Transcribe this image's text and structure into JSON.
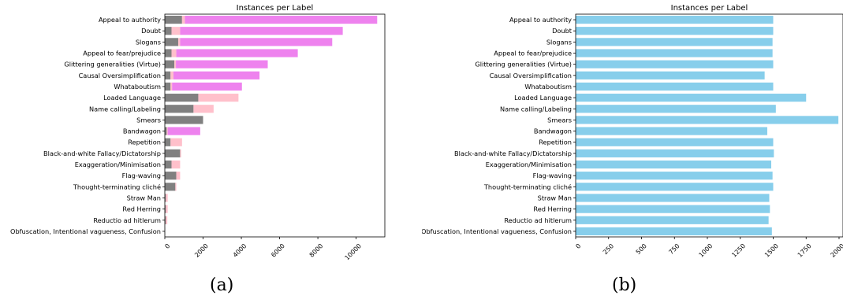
{
  "figure": {
    "caption_a": "(a)",
    "caption_b": "(b)"
  },
  "chart_data": [
    {
      "type": "bar",
      "orientation": "horizontal",
      "stacked": true,
      "title": "Instances per Label",
      "xlabel": "",
      "ylabel": "",
      "xlim": [
        0,
        11500
      ],
      "xticks": [
        0,
        2000,
        4000,
        6000,
        8000,
        10000
      ],
      "grid": false,
      "legend": "none",
      "categories": [
        "Appeal to authority",
        "Doubt",
        "Slogans",
        "Appeal to fear/prejudice",
        "Glittering generalities (Virtue)",
        "Causal Oversimplification",
        "Whataboutism",
        "Loaded Language",
        "Name calling/Labeling",
        "Smears",
        "Bandwagon",
        "Repetition",
        "Black-and-white Fallacy/Dictatorship",
        "Exaggeration/Minimisation",
        "Flag-waving",
        "Thought-terminating cliché",
        "Straw Man",
        "Red Herring",
        "Reductio ad hitlerum",
        "Obfuscation, Intentional vagueness, Confusion"
      ],
      "series": [
        {
          "color": "#808080",
          "values": [
            900,
            350,
            700,
            350,
            500,
            300,
            300,
            1750,
            1500,
            2000,
            100,
            300,
            800,
            350,
            600,
            550,
            50,
            50,
            50,
            10
          ]
        },
        {
          "color": "#ffc0cb",
          "values": [
            150,
            450,
            100,
            250,
            80,
            150,
            80,
            2100,
            1050,
            0,
            50,
            600,
            50,
            450,
            200,
            50,
            100,
            100,
            80,
            0
          ]
        },
        {
          "color": "#ee82ee",
          "values": [
            10050,
            8500,
            7950,
            6350,
            4800,
            4500,
            3650,
            0,
            0,
            0,
            1700,
            0,
            0,
            0,
            0,
            0,
            0,
            0,
            0,
            0
          ]
        }
      ]
    },
    {
      "type": "bar",
      "orientation": "horizontal",
      "title": "Instances per Label",
      "xlabel": "",
      "ylabel": "",
      "xlim": [
        0,
        2030
      ],
      "xticks": [
        0,
        250,
        500,
        750,
        1000,
        1250,
        1500,
        1750,
        2000
      ],
      "grid": false,
      "legend": "none",
      "color": "#87ceeb",
      "categories": [
        "Appeal to authority",
        "Doubt",
        "Slogans",
        "Appeal to fear/prejudice",
        "Glittering generalities (Virtue)",
        "Causal Oversimplification",
        "Whataboutism",
        "Loaded Language",
        "Name calling/Labeling",
        "Smears",
        "Bandwagon",
        "Repetition",
        "Black-and-white Fallacy/Dictatorship",
        "Exaggeration/Minimisation",
        "Flag-waving",
        "Thought-terminating cliché",
        "Straw Man",
        "Red Herring ",
        "Reductio ad hitlerum",
        "Obfuscation, Intentional vagueness, Confusion"
      ],
      "values": [
        1500,
        1500,
        1495,
        1495,
        1500,
        1435,
        1500,
        1750,
        1520,
        1995,
        1455,
        1500,
        1505,
        1485,
        1495,
        1500,
        1470,
        1475,
        1465,
        1490
      ]
    }
  ]
}
